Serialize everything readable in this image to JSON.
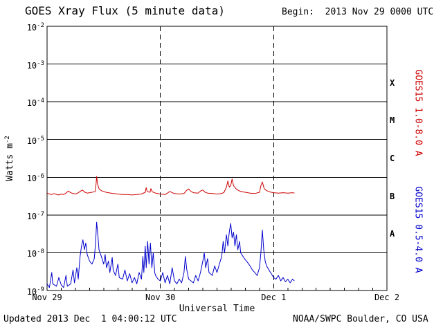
{
  "title": "GOES Xray Flux (5 minute data)",
  "begin_label": "Begin:  2013 Nov 29 0000 UTC",
  "footer": {
    "updated": "Updated 2013 Dec  1 04:00:12 UTC",
    "source": "NOAA/SWPC Boulder, CO USA"
  },
  "axes": {
    "x_title": "Universal Time",
    "y_title_base": "Watts m",
    "y_title_exponent": "-2"
  },
  "colors": {
    "long_series": "#cc0000",
    "short_series": "#0000cc",
    "grid": "#000000",
    "background": "#ffffff",
    "text": "#000000"
  },
  "chart_data": {
    "type": "line",
    "title": "GOES Xray Flux (5 minute data)",
    "xlabel": "Universal Time",
    "ylabel": "Watts m^-2",
    "yscale": "log",
    "ylim": [
      1e-09,
      0.01
    ],
    "xlim_hours": [
      0,
      72
    ],
    "x_origin": "2013 Nov 29 0000 UTC",
    "point_format": "[hours_since_begin, watts_per_m2]",
    "grid": "horizontal solid lines at each decade; vertical dashed lines at day boundaries",
    "x_ticks": [
      {
        "hours": 0,
        "label": "Nov 29"
      },
      {
        "hours": 24,
        "label": "Nov 30"
      },
      {
        "hours": 48,
        "label": "Dec 1"
      },
      {
        "hours": 72,
        "label": "Dec 2"
      }
    ],
    "y_tick_exponents": [
      -2,
      -3,
      -4,
      -5,
      -6,
      -7,
      -8,
      -9
    ],
    "flare_classes": [
      {
        "label": "X",
        "log10_center": -3.5
      },
      {
        "label": "M",
        "log10_center": -4.5
      },
      {
        "label": "C",
        "log10_center": -5.5
      },
      {
        "label": "B",
        "log10_center": -6.5
      },
      {
        "label": "A",
        "log10_center": -7.5
      }
    ],
    "series": [
      {
        "name": "GOES15 1.0-8.0 A",
        "color": "#cc0000",
        "points": [
          [
            0,
            3.8e-07
          ],
          [
            0.5,
            3.6e-07
          ],
          [
            1,
            3.5e-07
          ],
          [
            1.5,
            3.7e-07
          ],
          [
            2,
            3.5e-07
          ],
          [
            2.5,
            3.4e-07
          ],
          [
            3,
            3.6e-07
          ],
          [
            3.5,
            3.5e-07
          ],
          [
            4,
            3.8e-07
          ],
          [
            4.5,
            4.3e-07
          ],
          [
            5,
            3.9e-07
          ],
          [
            5.5,
            3.7e-07
          ],
          [
            6,
            3.6e-07
          ],
          [
            6.5,
            3.8e-07
          ],
          [
            7,
            4.2e-07
          ],
          [
            7.5,
            4.6e-07
          ],
          [
            8,
            4e-07
          ],
          [
            8.5,
            3.8e-07
          ],
          [
            9,
            3.9e-07
          ],
          [
            9.5,
            4e-07
          ],
          [
            10.2,
            4.2e-07
          ],
          [
            10.4,
            7e-07
          ],
          [
            10.5,
            1.05e-06
          ],
          [
            10.7,
            6.5e-07
          ],
          [
            11,
            5e-07
          ],
          [
            11.5,
            4.4e-07
          ],
          [
            12,
            4.2e-07
          ],
          [
            12.5,
            4e-07
          ],
          [
            13,
            3.9e-07
          ],
          [
            13.5,
            3.8e-07
          ],
          [
            14,
            3.7e-07
          ],
          [
            15,
            3.6e-07
          ],
          [
            16,
            3.5e-07
          ],
          [
            17,
            3.5e-07
          ],
          [
            18,
            3.4e-07
          ],
          [
            19,
            3.5e-07
          ],
          [
            20,
            3.6e-07
          ],
          [
            20.8,
            4e-07
          ],
          [
            21,
            5.3e-07
          ],
          [
            21.2,
            4.2e-07
          ],
          [
            21.8,
            4e-07
          ],
          [
            22,
            5e-07
          ],
          [
            22.3,
            4.1e-07
          ],
          [
            23,
            3.8e-07
          ],
          [
            24,
            3.6e-07
          ],
          [
            25,
            3.5e-07
          ],
          [
            25.5,
            3.8e-07
          ],
          [
            26,
            4.2e-07
          ],
          [
            26.5,
            3.9e-07
          ],
          [
            27,
            3.7e-07
          ],
          [
            28,
            3.6e-07
          ],
          [
            29,
            3.7e-07
          ],
          [
            29.5,
            4.4e-07
          ],
          [
            30,
            4.9e-07
          ],
          [
            30.5,
            4.2e-07
          ],
          [
            31,
            3.9e-07
          ],
          [
            32,
            3.8e-07
          ],
          [
            32.5,
            4.3e-07
          ],
          [
            33,
            4.6e-07
          ],
          [
            33.5,
            4e-07
          ],
          [
            34,
            3.8e-07
          ],
          [
            35,
            3.7e-07
          ],
          [
            36,
            3.6e-07
          ],
          [
            37,
            3.7e-07
          ],
          [
            37.5,
            4e-07
          ],
          [
            38,
            5.5e-07
          ],
          [
            38.3,
            8e-07
          ],
          [
            38.6,
            5.5e-07
          ],
          [
            38.9,
            6e-07
          ],
          [
            39.2,
            9e-07
          ],
          [
            39.5,
            6e-07
          ],
          [
            40,
            5e-07
          ],
          [
            40.5,
            4.5e-07
          ],
          [
            41,
            4.2e-07
          ],
          [
            42,
            4e-07
          ],
          [
            43,
            3.8e-07
          ],
          [
            44,
            3.7e-07
          ],
          [
            45,
            4e-07
          ],
          [
            45.3,
            6e-07
          ],
          [
            45.6,
            7.5e-07
          ],
          [
            46,
            5e-07
          ],
          [
            46.5,
            4.4e-07
          ],
          [
            47,
            4.2e-07
          ],
          [
            47.5,
            4e-07
          ],
          [
            48,
            3.9e-07
          ],
          [
            49,
            3.8e-07
          ],
          [
            50,
            3.9e-07
          ],
          [
            51,
            3.8e-07
          ],
          [
            52,
            3.9e-07
          ],
          [
            52.4,
            3.8e-07
          ]
        ]
      },
      {
        "name": "GOES15 0.5-4.0 A",
        "color": "#0000cc",
        "points": [
          [
            0,
            1.5e-09
          ],
          [
            0.5,
            1.2e-09
          ],
          [
            1,
            3e-09
          ],
          [
            1.2,
            1.5e-09
          ],
          [
            2,
            1.3e-09
          ],
          [
            2.5,
            2.2e-09
          ],
          [
            3,
            1.4e-09
          ],
          [
            3.5,
            1.2e-09
          ],
          [
            4,
            2.5e-09
          ],
          [
            4.3,
            1.3e-09
          ],
          [
            5,
            1.5e-09
          ],
          [
            5.5,
            3.5e-09
          ],
          [
            5.8,
            1.6e-09
          ],
          [
            6.3,
            4e-09
          ],
          [
            6.6,
            2e-09
          ],
          [
            7,
            8e-09
          ],
          [
            7.3,
            1.5e-08
          ],
          [
            7.6,
            2.2e-08
          ],
          [
            7.9,
            1.2e-08
          ],
          [
            8.2,
            1.8e-08
          ],
          [
            8.5,
            9e-09
          ],
          [
            9,
            6e-09
          ],
          [
            9.5,
            5e-09
          ],
          [
            10,
            7e-09
          ],
          [
            10.3,
            2e-08
          ],
          [
            10.5,
            6.5e-08
          ],
          [
            10.8,
            2.5e-08
          ],
          [
            11,
            1.2e-08
          ],
          [
            11.5,
            8e-09
          ],
          [
            12,
            5e-09
          ],
          [
            12.3,
            9e-09
          ],
          [
            12.6,
            4e-09
          ],
          [
            13,
            6e-09
          ],
          [
            13.3,
            3e-09
          ],
          [
            13.8,
            7.5e-09
          ],
          [
            14,
            3.5e-09
          ],
          [
            14.5,
            2.5e-09
          ],
          [
            15,
            5e-09
          ],
          [
            15.3,
            2.2e-09
          ],
          [
            16,
            2e-09
          ],
          [
            16.5,
            3.5e-09
          ],
          [
            17,
            1.8e-09
          ],
          [
            17.5,
            2.8e-09
          ],
          [
            18,
            1.6e-09
          ],
          [
            18.5,
            2.2e-09
          ],
          [
            19,
            1.5e-09
          ],
          [
            19.5,
            3e-09
          ],
          [
            20,
            2e-09
          ],
          [
            20.3,
            8e-09
          ],
          [
            20.5,
            3e-09
          ],
          [
            20.8,
            1.5e-08
          ],
          [
            21,
            4e-09
          ],
          [
            21.3,
            2e-08
          ],
          [
            21.6,
            5e-09
          ],
          [
            21.9,
            1.8e-08
          ],
          [
            22.2,
            4e-09
          ],
          [
            22.5,
            1e-08
          ],
          [
            22.8,
            3e-09
          ],
          [
            23,
            2.5e-09
          ],
          [
            23.5,
            2e-09
          ],
          [
            24,
            1.8e-09
          ],
          [
            24.5,
            3e-09
          ],
          [
            25,
            1.6e-09
          ],
          [
            25.5,
            2.5e-09
          ],
          [
            26,
            1.5e-09
          ],
          [
            26.5,
            4e-09
          ],
          [
            27,
            1.8e-09
          ],
          [
            27.5,
            1.5e-09
          ],
          [
            28,
            2e-09
          ],
          [
            28.5,
            1.6e-09
          ],
          [
            29,
            3e-09
          ],
          [
            29.3,
            8e-09
          ],
          [
            29.6,
            3.5e-09
          ],
          [
            30,
            2e-09
          ],
          [
            30.5,
            1.8e-09
          ],
          [
            31,
            1.6e-09
          ],
          [
            31.5,
            2.5e-09
          ],
          [
            32,
            1.8e-09
          ],
          [
            32.5,
            3e-09
          ],
          [
            33,
            6e-09
          ],
          [
            33.3,
            1e-08
          ],
          [
            33.6,
            4e-09
          ],
          [
            34,
            7e-09
          ],
          [
            34.3,
            3e-09
          ],
          [
            35,
            2.5e-09
          ],
          [
            35.5,
            4.5e-09
          ],
          [
            36,
            3e-09
          ],
          [
            36.5,
            5e-09
          ],
          [
            37,
            8e-09
          ],
          [
            37.3,
            2e-08
          ],
          [
            37.6,
            1e-08
          ],
          [
            38,
            3e-08
          ],
          [
            38.3,
            1.5e-08
          ],
          [
            38.6,
            3.5e-08
          ],
          [
            38.9,
            6e-08
          ],
          [
            39.2,
            2.5e-08
          ],
          [
            39.5,
            3.5e-08
          ],
          [
            39.8,
            1.5e-08
          ],
          [
            40.1,
            3e-08
          ],
          [
            40.4,
            1.2e-08
          ],
          [
            40.8,
            2e-08
          ],
          [
            41,
            1e-08
          ],
          [
            41.5,
            8e-09
          ],
          [
            42,
            6.5e-09
          ],
          [
            42.5,
            5.5e-09
          ],
          [
            43,
            4.5e-09
          ],
          [
            43.5,
            3.5e-09
          ],
          [
            44,
            3e-09
          ],
          [
            44.5,
            2.5e-09
          ],
          [
            45,
            4e-09
          ],
          [
            45.3,
            1e-08
          ],
          [
            45.6,
            4e-08
          ],
          [
            45.9,
            1.2e-08
          ],
          [
            46.2,
            6e-09
          ],
          [
            46.5,
            4.5e-09
          ],
          [
            47,
            3.5e-09
          ],
          [
            47.5,
            2.8e-09
          ],
          [
            48,
            2.2e-09
          ],
          [
            48.5,
            2e-09
          ],
          [
            49,
            2.5e-09
          ],
          [
            49.5,
            1.8e-09
          ],
          [
            50,
            2.2e-09
          ],
          [
            50.5,
            1.7e-09
          ],
          [
            51,
            2e-09
          ],
          [
            51.5,
            1.6e-09
          ],
          [
            52,
            2e-09
          ],
          [
            52.4,
            1.8e-09
          ]
        ]
      }
    ]
  }
}
